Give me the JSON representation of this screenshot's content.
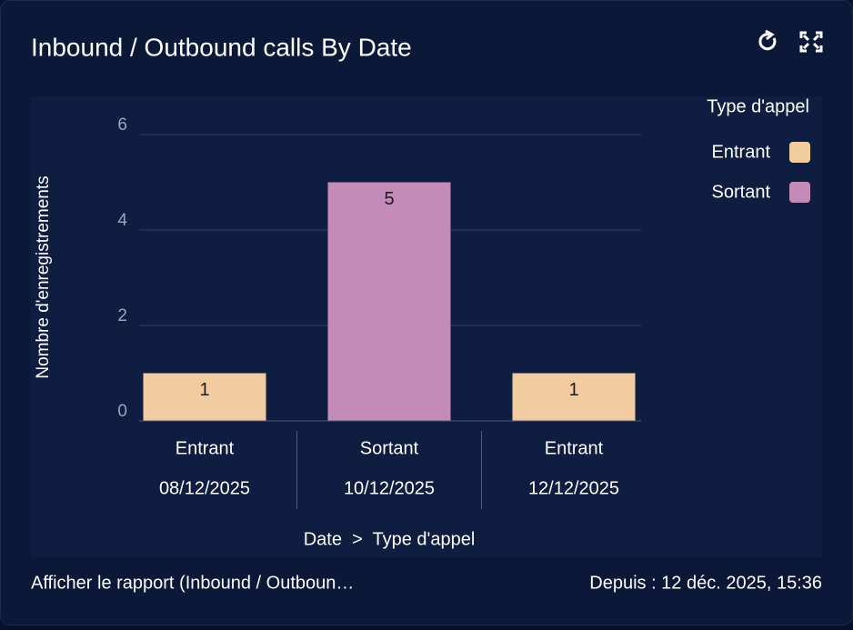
{
  "header": {
    "title": "Inbound / Outbound calls By Date"
  },
  "chart_data": {
    "type": "bar",
    "categories": [
      "08/12/2025",
      "10/12/2025",
      "12/12/2025"
    ],
    "subcategories": [
      "Entrant",
      "Sortant",
      "Entrant"
    ],
    "series": [
      {
        "name": "Entrant",
        "color": "#f2cca1",
        "values": [
          1,
          null,
          1
        ]
      },
      {
        "name": "Sortant",
        "color": "#c48bb9",
        "values": [
          null,
          5,
          null
        ]
      }
    ],
    "ylim": [
      0,
      6
    ],
    "yticks": [
      0,
      2,
      4,
      6
    ],
    "grid": true,
    "ylabel": "Nombre d'enregistrements",
    "xlabel": "Date  >  Type d'appel",
    "legend_title": "Type d'appel",
    "legend": "top-right"
  },
  "footer": {
    "link": "Afficher le rapport (Inbound / Outboun…",
    "since": "Depuis : 12 déc. 2025, 15:36"
  }
}
